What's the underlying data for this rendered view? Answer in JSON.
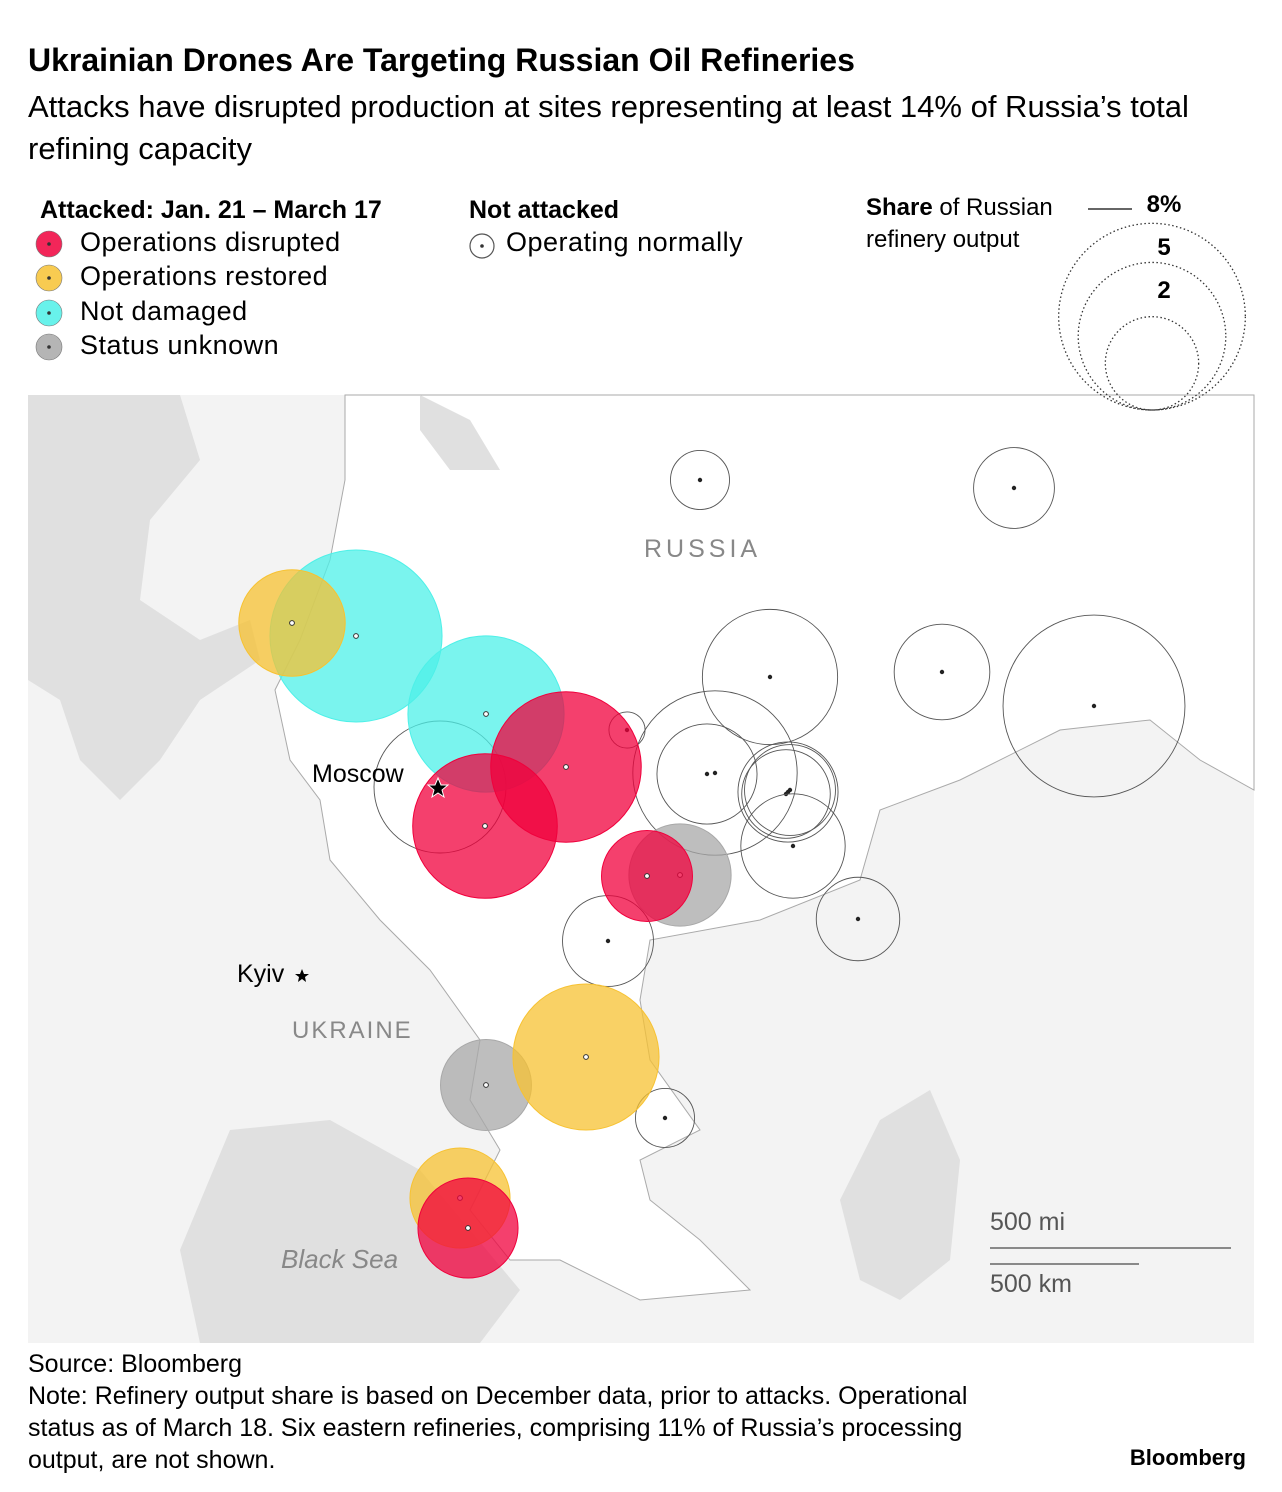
{
  "header": {
    "title": "Ukrainian Drones Are Targeting Russian Oil Refineries",
    "subtitle": "Attacks have disrupted production at sites representing at least 14% of Russia’s total refining capacity"
  },
  "legend": {
    "attacked_title": "Attacked: Jan. 21 – March 17",
    "statuses": [
      {
        "label": "Operations disrupted",
        "color": "#f0003c",
        "refineries": [
          5.2,
          4.8,
          1.9,
          2.3
        ]
      },
      {
        "label": "Operations restored",
        "color": "#f7c232",
        "refineries": [
          2.6,
          4.9,
          2.3
        ]
      },
      {
        "label": "Not damaged",
        "color": "#4ef0e8",
        "refineries": [
          6.8,
          5.6
        ]
      },
      {
        "label": "Status unknown",
        "color": "#a8a8a8",
        "refineries": [
          2.4,
          1.9
        ]
      }
    ],
    "not_attacked_title": "Not attacked",
    "not_attacked": {
      "label": "Operating normally",
      "color": "#555555",
      "refineries": [
        4.0,
        0.3,
        6.2,
        2.3,
        4.2,
        2.3,
        1.9,
        1.8,
        2.5,
        2.1,
        7.6,
        0.8,
        1.5,
        1.6,
        1.9,
        0.8
      ]
    },
    "size_title_bold": "Share",
    "size_title_rest": "of Russian refinery output",
    "sizes": [
      {
        "value": 8,
        "label": "8%"
      },
      5,
      2
    ]
  },
  "map": {
    "cities": [
      "Moscow",
      "Kyiv"
    ],
    "countries": [
      "RUSSIA",
      "UKRAINE"
    ],
    "sea": "Black Sea",
    "scale": [
      "500 mi",
      "500 km"
    ]
  },
  "footer": {
    "source": "Source: Bloomberg",
    "note": "Note: Refinery output share is based on December data, prior to attacks. Operational status as of March 18. Six eastern refineries, comprising 11% of Russia’s processing output, are not shown.",
    "brand": "Bloomberg"
  }
}
